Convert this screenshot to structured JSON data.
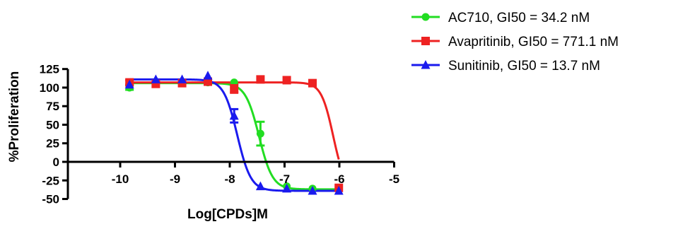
{
  "chart_data": {
    "type": "scatter",
    "xlabel": "Log[CPDs]M",
    "ylabel": "%Proliferation",
    "xlim": [
      -10.5,
      -5
    ],
    "ylim": [
      -50,
      125
    ],
    "x_ticks": [
      -10,
      -9,
      -8,
      -7,
      -6,
      -5
    ],
    "x_tick_labels": [
      "-10",
      "-9",
      "-8",
      "-7",
      "-6",
      "-5"
    ],
    "y_ticks": [
      -50,
      -25,
      0,
      25,
      50,
      75,
      100,
      125
    ],
    "y_tick_labels": [
      "-50",
      "-25",
      "0",
      "25",
      "50",
      "75",
      "100",
      "125"
    ],
    "grid": false,
    "legend_position": "top-right",
    "series": [
      {
        "name": "AC710, GI50 = 34.2 nM",
        "color": "#22dd22",
        "marker": "circle",
        "fit": {
          "top": 106,
          "bottom": -37,
          "log_gi50": -7.466,
          "hill": -3.5
        },
        "points": [
          {
            "x": -9.83,
            "y": 100,
            "err": 3
          },
          {
            "x": -9.35,
            "y": 106,
            "err": 2
          },
          {
            "x": -8.87,
            "y": 107,
            "err": 2
          },
          {
            "x": -8.4,
            "y": 107,
            "err": 2
          },
          {
            "x": -7.92,
            "y": 107,
            "err": 2
          },
          {
            "x": -7.44,
            "y": 38,
            "err": 16
          },
          {
            "x": -6.96,
            "y": -33,
            "err": 2
          },
          {
            "x": -6.49,
            "y": -36,
            "err": 2
          },
          {
            "x": -6.01,
            "y": -37,
            "err": 2
          }
        ]
      },
      {
        "name": "Avapritinib, GI50 = 771.1 nM",
        "color": "#ee2222",
        "marker": "square",
        "fit": {
          "top": 107,
          "bottom": -37,
          "log_gi50": -6.113,
          "hill": -4.0
        },
        "points": [
          {
            "x": -9.83,
            "y": 107,
            "err": 3
          },
          {
            "x": -9.35,
            "y": 105,
            "err": 2
          },
          {
            "x": -8.87,
            "y": 106,
            "err": 2
          },
          {
            "x": -8.4,
            "y": 108,
            "err": 2
          },
          {
            "x": -7.92,
            "y": 99,
            "err": 6
          },
          {
            "x": -7.44,
            "y": 111,
            "err": 2
          },
          {
            "x": -6.96,
            "y": 110,
            "err": 2
          },
          {
            "x": -6.49,
            "y": 106,
            "err": 2
          },
          {
            "x": -6.01,
            "y": -35,
            "err": 2
          }
        ]
      },
      {
        "name": "Sunitinib, GI50 = 13.7 nM",
        "color": "#1a1aee",
        "marker": "triangle",
        "fit": {
          "top": 111,
          "bottom": -39,
          "log_gi50": -7.863,
          "hill": -3.5
        },
        "points": [
          {
            "x": -9.83,
            "y": 104,
            "err": 2
          },
          {
            "x": -9.35,
            "y": 111,
            "err": 2
          },
          {
            "x": -8.87,
            "y": 111,
            "err": 2
          },
          {
            "x": -8.4,
            "y": 116,
            "err": 2
          },
          {
            "x": -7.92,
            "y": 62,
            "err": 9
          },
          {
            "x": -7.44,
            "y": -33,
            "err": 2
          },
          {
            "x": -6.96,
            "y": -36,
            "err": 2
          },
          {
            "x": -6.49,
            "y": -39,
            "err": 2
          },
          {
            "x": -6.01,
            "y": -39,
            "err": 2
          }
        ]
      }
    ]
  }
}
